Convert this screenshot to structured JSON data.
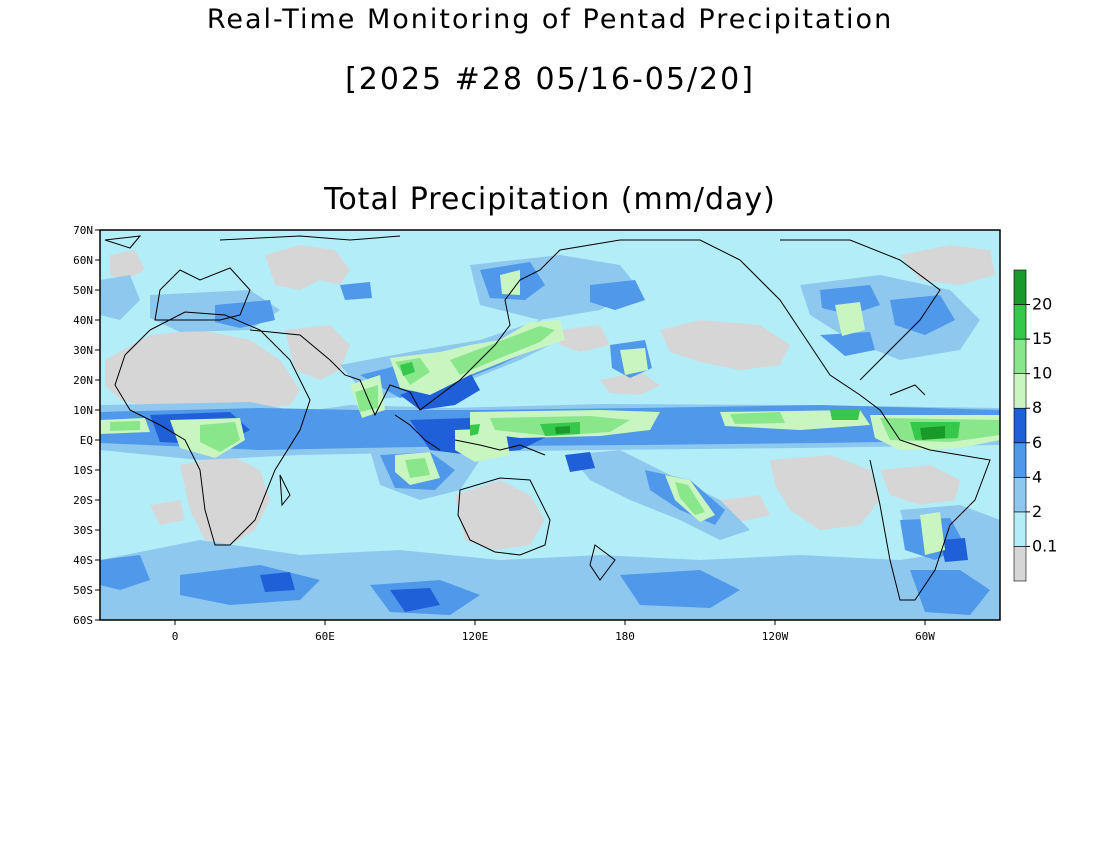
{
  "header": {
    "title": "Real-Time Monitoring of Pentad Precipitation",
    "subtitle": "[2025 #28 05/16-05/20]",
    "map_title": "Total Precipitation (mm/day)"
  },
  "map": {
    "projection": "equirectangular",
    "lon_range": [
      -30,
      330
    ],
    "lat_range": [
      -60,
      70
    ],
    "lat_ticks": [
      {
        "lat": 70,
        "label": "70N"
      },
      {
        "lat": 60,
        "label": "60N"
      },
      {
        "lat": 50,
        "label": "50N"
      },
      {
        "lat": 40,
        "label": "40N"
      },
      {
        "lat": 30,
        "label": "30N"
      },
      {
        "lat": 20,
        "label": "20N"
      },
      {
        "lat": 10,
        "label": "10N"
      },
      {
        "lat": 0,
        "label": "EQ"
      },
      {
        "lat": -10,
        "label": "10S"
      },
      {
        "lat": -20,
        "label": "20S"
      },
      {
        "lat": -30,
        "label": "30S"
      },
      {
        "lat": -40,
        "label": "40S"
      },
      {
        "lat": -50,
        "label": "50S"
      },
      {
        "lat": -60,
        "label": "60S"
      }
    ],
    "lon_ticks": [
      {
        "lon": 0,
        "label": "0"
      },
      {
        "lon": 60,
        "label": "60E"
      },
      {
        "lon": 120,
        "label": "120E"
      },
      {
        "lon": 180,
        "label": "180"
      },
      {
        "lon": 240,
        "label": "120W"
      },
      {
        "lon": 300,
        "label": "60W"
      }
    ],
    "legend_placement": "right",
    "legend": [
      {
        "label": "",
        "color": "#d6d6d6"
      },
      {
        "label": "0.1",
        "color": "#b3eef8"
      },
      {
        "label": "2",
        "color": "#8ec8ef"
      },
      {
        "label": "4",
        "color": "#4f98ea"
      },
      {
        "label": "6",
        "color": "#1f5fd8"
      },
      {
        "label": "8",
        "color": "#c8f5c0"
      },
      {
        "label": "10",
        "color": "#8ae68a"
      },
      {
        "label": "15",
        "color": "#36c84a"
      },
      {
        "label": "20",
        "color": "#1a9a2a"
      }
    ]
  }
}
